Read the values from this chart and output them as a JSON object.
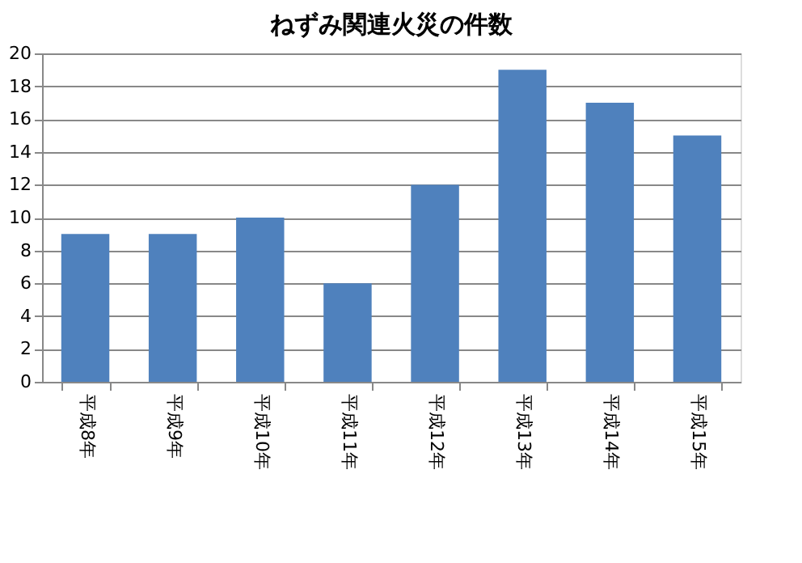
{
  "chart_data": {
    "type": "bar",
    "title": "ねずみ関連火災の件数",
    "categories": [
      "平成8年",
      "平成9年",
      "平成10年",
      "平成11年",
      "平成12年",
      "平成13年",
      "平成14年",
      "平成15年"
    ],
    "values": [
      9,
      9,
      10,
      6,
      12,
      19,
      17,
      15
    ],
    "color": "#4f81bd",
    "ylim": [
      0,
      20
    ],
    "yticks": [
      0,
      2,
      4,
      6,
      8,
      10,
      12,
      14,
      16,
      18,
      20
    ],
    "grid": "y"
  }
}
